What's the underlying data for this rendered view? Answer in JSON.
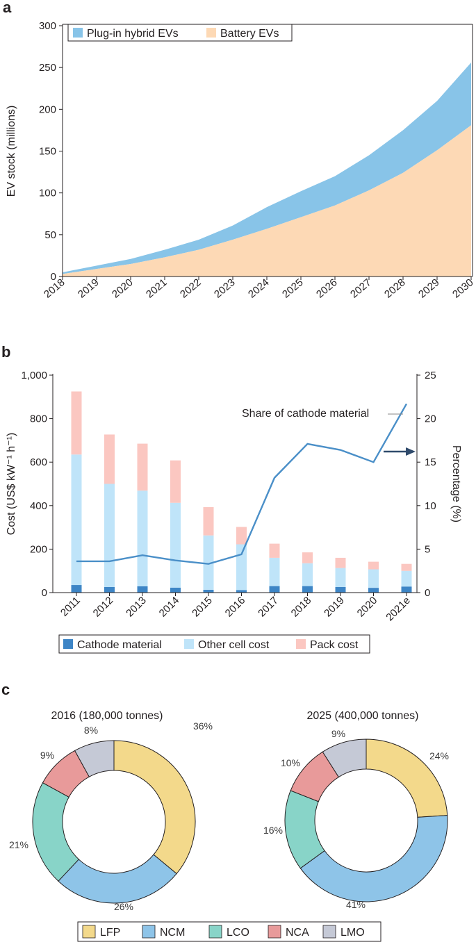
{
  "panels": {
    "a": "a",
    "b": "b",
    "c": "c"
  },
  "chart_data": [
    {
      "panel": "a",
      "type": "area",
      "stacked": true,
      "x": [
        "2018",
        "2019",
        "2020",
        "2021",
        "2022",
        "2023",
        "2024",
        "2025",
        "2026",
        "2027",
        "2028",
        "2029",
        "2030"
      ],
      "series": [
        {
          "name": "Battery EVs",
          "color": "#fdd9b5",
          "values": [
            3,
            9,
            15,
            23,
            32,
            44,
            57,
            71,
            85,
            103,
            124,
            151,
            181
          ]
        },
        {
          "name": "Plug-in hybrid EVs",
          "color": "#88c4e8",
          "values": [
            2,
            4,
            6,
            9,
            12,
            17,
            26,
            31,
            35,
            42,
            51,
            59,
            75
          ]
        }
      ],
      "totals": [
        5,
        13,
        21,
        32,
        44,
        61,
        83,
        102,
        120,
        145,
        175,
        210,
        256
      ],
      "ylabel": "EV stock (millions)",
      "ylim": [
        0,
        300
      ],
      "yticks": [
        0,
        50,
        100,
        150,
        200,
        250,
        300
      ],
      "legend": "top-left"
    },
    {
      "panel": "b",
      "type": "bar",
      "stacked": true,
      "categories": [
        "2011",
        "2012",
        "2013",
        "2014",
        "2015",
        "2016",
        "2017",
        "2018",
        "2019",
        "2020",
        "2021e"
      ],
      "series": [
        {
          "name": "Cathode material",
          "color": "#3d85c6",
          "values": [
            35,
            26,
            29,
            23,
            13,
            12,
            30,
            30,
            26,
            22,
            28
          ]
        },
        {
          "name": "Other cell cost",
          "color": "#bfe4f9",
          "values": [
            600,
            474,
            440,
            390,
            250,
            210,
            130,
            105,
            87,
            85,
            72
          ]
        },
        {
          "name": "Pack cost",
          "color": "#fbc7c1",
          "values": [
            290,
            227,
            216,
            195,
            130,
            80,
            65,
            50,
            47,
            35,
            32
          ]
        }
      ],
      "line": {
        "name": "Share of cathode material",
        "axis": "right",
        "color": "#4a8fc8",
        "values": [
          3.6,
          3.6,
          4.3,
          3.7,
          3.3,
          4.4,
          13.2,
          17.1,
          16.4,
          15.0,
          21.7
        ]
      },
      "ylabel": "Cost (US$ kW⁻¹ h⁻¹)",
      "y2label": "Percentage (%)",
      "ylim": [
        0,
        1000
      ],
      "yticks": [
        "0",
        "200",
        "400",
        "600",
        "800",
        "1,000"
      ],
      "y2lim": [
        0,
        25
      ],
      "y2ticks": [
        0,
        5,
        10,
        15,
        20,
        25
      ],
      "annotation": "Share of cathode material",
      "legend": "bottom"
    },
    {
      "panel": "c",
      "type": "pie",
      "donut": true,
      "pies": [
        {
          "title": "2016 (180,000 tonnes)",
          "slices": [
            {
              "label": "LFP",
              "value": 36,
              "text": "36%"
            },
            {
              "label": "NCM",
              "value": 26,
              "text": "26%"
            },
            {
              "label": "LCO",
              "value": 21,
              "text": "21%"
            },
            {
              "label": "NCA",
              "value": 9,
              "text": "9%"
            },
            {
              "label": "LMO",
              "value": 8,
              "text": "8%"
            }
          ]
        },
        {
          "title": "2025 (400,000 tonnes)",
          "slices": [
            {
              "label": "LFP",
              "value": 24,
              "text": "24%"
            },
            {
              "label": "NCM",
              "value": 41,
              "text": "41%"
            },
            {
              "label": "LCO",
              "value": 16,
              "text": "16%"
            },
            {
              "label": "NCA",
              "value": 10,
              "text": "10%"
            },
            {
              "label": "LMO",
              "value": 9,
              "text": "9%"
            }
          ]
        }
      ],
      "legend": [
        {
          "label": "LFP",
          "color": "#f3d98b"
        },
        {
          "label": "NCM",
          "color": "#8ec4e8"
        },
        {
          "label": "LCO",
          "color": "#88d4c8"
        },
        {
          "label": "NCA",
          "color": "#e89a9a"
        },
        {
          "label": "LMO",
          "color": "#c5c9d6"
        }
      ]
    }
  ]
}
